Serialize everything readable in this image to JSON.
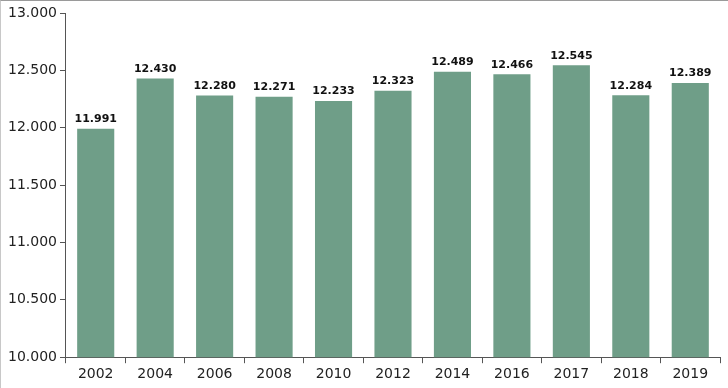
{
  "chart_data": {
    "type": "bar",
    "categories": [
      "2002",
      "2004",
      "2006",
      "2008",
      "2010",
      "2012",
      "2014",
      "2016",
      "2017",
      "2018",
      "2019"
    ],
    "values": [
      11991,
      12430,
      12280,
      12271,
      12233,
      12323,
      12489,
      12466,
      12545,
      12284,
      12389
    ],
    "value_labels": [
      "11.991",
      "12.430",
      "12.280",
      "12.271",
      "12.233",
      "12.323",
      "12.489",
      "12.466",
      "12.545",
      "12.284",
      "12.389"
    ],
    "color": "#6f9e88",
    "ylim": [
      10000,
      13000
    ],
    "yticks": [
      {
        "value": 10000,
        "label": "10.000"
      },
      {
        "value": 10500,
        "label": "10.500"
      },
      {
        "value": 11000,
        "label": "11.000"
      },
      {
        "value": 11500,
        "label": "11.500"
      },
      {
        "value": 12000,
        "label": "12.000"
      },
      {
        "value": 12500,
        "label": "12.500"
      },
      {
        "value": 13000,
        "label": "13.000"
      }
    ],
    "grid": false,
    "data_labels": true
  }
}
